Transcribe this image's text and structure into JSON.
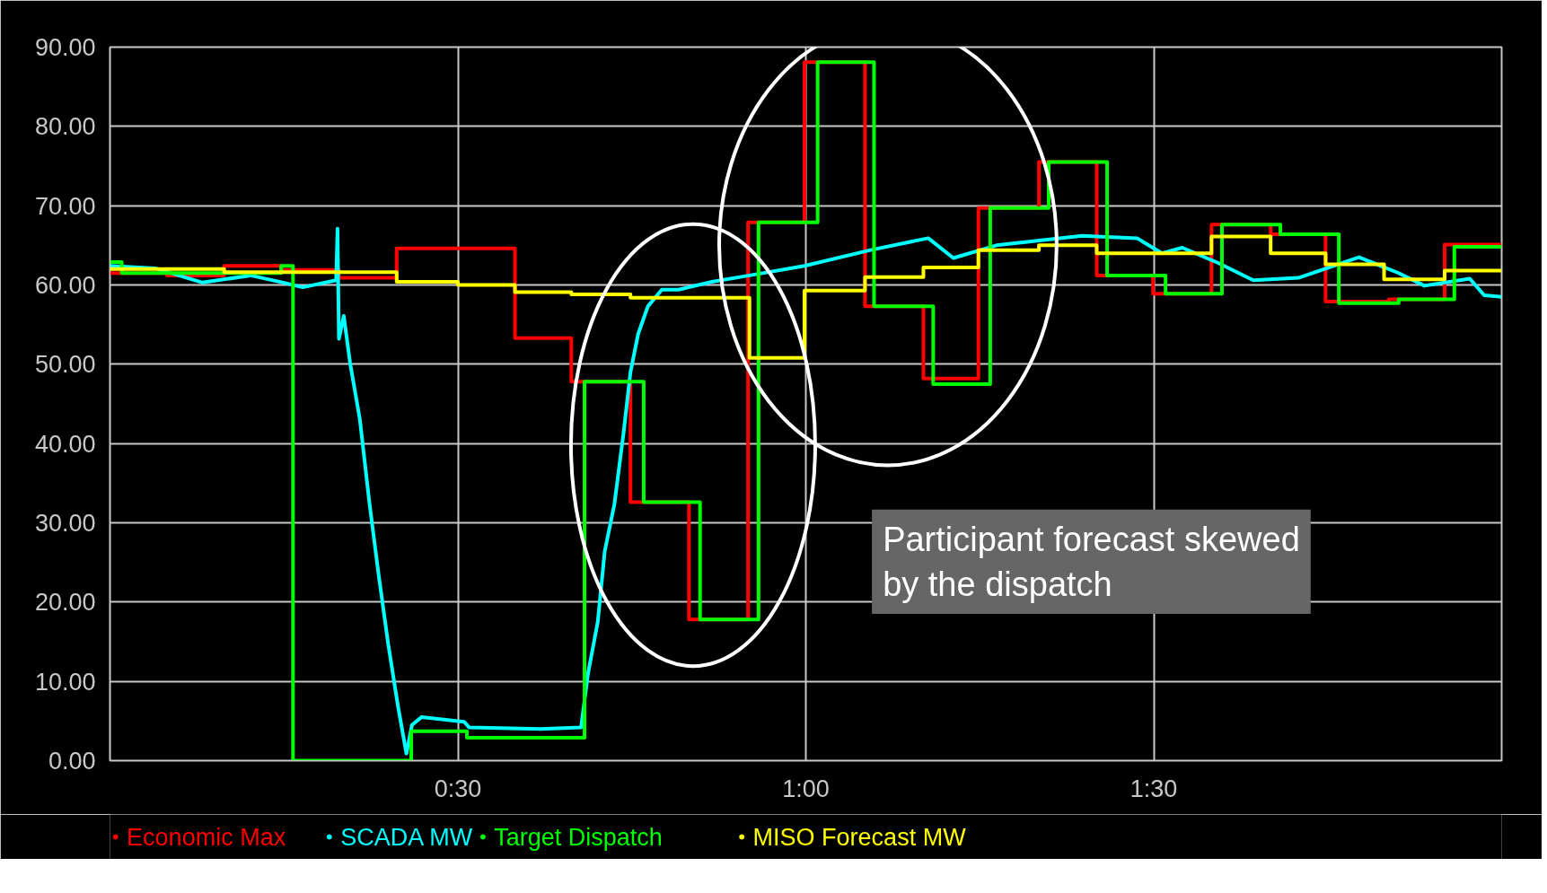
{
  "chart_data": {
    "type": "step",
    "xlim": [
      0,
      2
    ],
    "ylim": [
      0,
      90
    ],
    "xticks": [
      {
        "value": 0.5,
        "label": "0:30"
      },
      {
        "value": 1,
        "label": "1:00"
      },
      {
        "value": 1.5,
        "label": "1:30"
      }
    ],
    "yticks": [
      {
        "value": 0,
        "label": "0.00"
      },
      {
        "value": 10,
        "label": "10.00"
      },
      {
        "value": 20,
        "label": "20.00"
      },
      {
        "value": 30,
        "label": "30.00"
      },
      {
        "value": 40,
        "label": "40.00"
      },
      {
        "value": 50,
        "label": "50.00"
      },
      {
        "value": 60,
        "label": "60.00"
      },
      {
        "value": 70,
        "label": "70.00"
      },
      {
        "value": 80,
        "label": "80.00"
      },
      {
        "value": 90,
        "label": "90.00"
      }
    ],
    "grid": true,
    "legend": "bottom",
    "annotations": [
      "Participant forecast skewed by the dispatch"
    ],
    "series": [
      {
        "name": "Economic Max",
        "color": "#ff0000",
        "x": [
          0,
          0.082,
          0.164,
          0.246,
          0.329,
          0.412,
          0.582,
          0.663,
          0.748,
          0.832,
          0.917,
          0.998,
          1.085,
          1.169,
          1.248,
          1.335,
          1.418,
          1.499,
          1.583,
          1.668,
          1.747,
          1.838,
          1.918,
          2.0
        ],
        "values": [
          61.5,
          61.2,
          62.4,
          61.9,
          60.9,
          64.6,
          53.3,
          47.8,
          32.6,
          17.8,
          67.9,
          88.1,
          57.3,
          48.2,
          69.7,
          75.5,
          61.2,
          58.9,
          67.6,
          66.4,
          57.9,
          58.2,
          65.1,
          65.1
        ]
      },
      {
        "name": "SCADA MW",
        "color": "#00ffff",
        "type": "line",
        "x": [
          0,
          0.065,
          0.133,
          0.202,
          0.249,
          0.277,
          0.325,
          0.327,
          0.329,
          0.336,
          0.345,
          0.359,
          0.373,
          0.386,
          0.4,
          0.414,
          0.426,
          0.434,
          0.448,
          0.509,
          0.516,
          0.619,
          0.677,
          0.687,
          0.701,
          0.711,
          0.725,
          0.738,
          0.748,
          0.759,
          0.773,
          0.793,
          0.817,
          0.865,
          0.919,
          0.998,
          1.093,
          1.176,
          1.212,
          1.274,
          1.397,
          1.476,
          1.512,
          1.541,
          1.592,
          1.643,
          1.708,
          1.795,
          1.852,
          1.889,
          1.954,
          1.975,
          2.0
        ],
        "values": [
          62.4,
          62.1,
          60.3,
          61.2,
          60.3,
          59.7,
          60.6,
          67.1,
          53.2,
          56.1,
          50.2,
          43.1,
          32.4,
          23.5,
          14.6,
          6.8,
          0.9,
          4.5,
          5.5,
          4.9,
          4.2,
          4.0,
          4.2,
          11.0,
          17.5,
          26.4,
          32.4,
          41.3,
          49.0,
          53.8,
          57.3,
          59.4,
          59.4,
          60.4,
          61.2,
          62.4,
          64.4,
          65.9,
          63.4,
          65.0,
          66.2,
          65.9,
          64.0,
          64.7,
          62.8,
          60.6,
          60.9,
          63.5,
          61.5,
          59.9,
          60.8,
          58.7,
          58.5
        ]
      },
      {
        "name": "Target Dispatch",
        "color": "#00ff00",
        "x": [
          0,
          0.017,
          0.246,
          0.263,
          0.433,
          0.513,
          0.682,
          0.767,
          0.848,
          0.932,
          1.017,
          1.098,
          1.183,
          1.265,
          1.349,
          1.433,
          1.517,
          1.598,
          1.682,
          1.766,
          1.852,
          1.932,
          2.0
        ],
        "values": [
          62.9,
          61.5,
          62.4,
          0,
          3.7,
          2.9,
          47.8,
          32.6,
          17.8,
          67.9,
          88.1,
          57.3,
          47.5,
          69.7,
          75.5,
          61.2,
          58.9,
          67.6,
          66.4,
          57.7,
          58.2,
          64.8,
          64.8
        ]
      },
      {
        "name": "MISO Forecast MW",
        "color": "#ffff00",
        "x": [
          0,
          0.164,
          0.412,
          0.5,
          0.582,
          0.663,
          0.748,
          0.919,
          0.998,
          1.085,
          1.169,
          1.248,
          1.335,
          1.418,
          1.583,
          1.668,
          1.747,
          1.831,
          1.918,
          2.0
        ],
        "values": [
          62.0,
          61.6,
          60.4,
          60.0,
          59.1,
          58.8,
          58.4,
          50.8,
          59.3,
          61.0,
          62.2,
          64.4,
          65.0,
          64.0,
          66.1,
          64.0,
          62.6,
          60.7,
          61.8,
          61.8
        ]
      }
    ]
  }
}
